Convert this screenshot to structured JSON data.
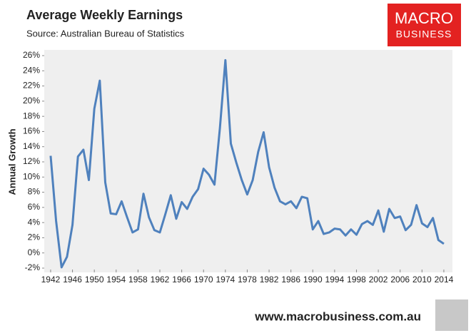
{
  "chart_data": {
    "type": "line",
    "title": "Average Weekly Earnings",
    "subtitle": "Source: Australian Bureau of Statistics",
    "y_label": "Annual Growth",
    "x": [
      1942,
      1943,
      1944,
      1945,
      1946,
      1947,
      1948,
      1949,
      1950,
      1951,
      1952,
      1953,
      1954,
      1955,
      1956,
      1957,
      1958,
      1959,
      1960,
      1961,
      1962,
      1963,
      1964,
      1965,
      1966,
      1967,
      1968,
      1969,
      1970,
      1971,
      1972,
      1973,
      1974,
      1975,
      1976,
      1977,
      1978,
      1979,
      1980,
      1981,
      1982,
      1983,
      1984,
      1985,
      1986,
      1987,
      1988,
      1989,
      1990,
      1991,
      1992,
      1993,
      1994,
      1995,
      1996,
      1997,
      1998,
      1999,
      2000,
      2001,
      2002,
      2003,
      2004,
      2005,
      2006,
      2007,
      2008,
      2009,
      2010,
      2011,
      2012,
      2013,
      2014
    ],
    "values": [
      12.8,
      4.2,
      -1.9,
      -0.5,
      3.7,
      12.7,
      13.6,
      9.6,
      19.0,
      22.7,
      9.3,
      5.2,
      5.1,
      6.8,
      4.7,
      2.7,
      3.1,
      7.8,
      4.7,
      3.0,
      2.7,
      5.1,
      7.6,
      4.5,
      6.7,
      5.8,
      7.4,
      8.4,
      11.1,
      10.3,
      9.0,
      16.5,
      25.4,
      14.4,
      11.9,
      9.6,
      7.7,
      9.6,
      13.3,
      15.9,
      11.3,
      8.6,
      6.8,
      6.4,
      6.8,
      5.9,
      7.4,
      7.2,
      3.1,
      4.2,
      2.5,
      2.7,
      3.2,
      3.1,
      2.3,
      3.1,
      2.4,
      3.8,
      4.2,
      3.7,
      5.6,
      2.8,
      5.8,
      4.6,
      4.8,
      3.0,
      3.7,
      6.3,
      3.9,
      3.4,
      4.6,
      1.7,
      1.2
    ],
    "color": "#4f81bd",
    "xlim": [
      1941,
      2015
    ],
    "xticks": [
      1942,
      1946,
      1950,
      1954,
      1958,
      1962,
      1966,
      1970,
      1974,
      1978,
      1982,
      1986,
      1990,
      1994,
      1998,
      2002,
      2006,
      2010,
      2014
    ],
    "ylim": [
      -2,
      26
    ],
    "yticks": [
      {
        "value": -2,
        "label": "-2%"
      },
      {
        "value": 0,
        "label": "0%"
      },
      {
        "value": 2,
        "label": "2%"
      },
      {
        "value": 4,
        "label": "4%"
      },
      {
        "value": 6,
        "label": "6%"
      },
      {
        "value": 8,
        "label": "8%"
      },
      {
        "value": 10,
        "label": "10%"
      },
      {
        "value": 12,
        "label": "12%"
      },
      {
        "value": 14,
        "label": "14%"
      },
      {
        "value": 16,
        "label": "16%"
      },
      {
        "value": 18,
        "label": "18%"
      },
      {
        "value": 20,
        "label": "20%"
      },
      {
        "value": 22,
        "label": "22%"
      },
      {
        "value": 24,
        "label": "24%"
      },
      {
        "value": 26,
        "label": "26%"
      }
    ]
  },
  "logo": {
    "line1": "MACRO",
    "line2": "BUSINESS"
  },
  "footer": "www.macrobusiness.com.au"
}
